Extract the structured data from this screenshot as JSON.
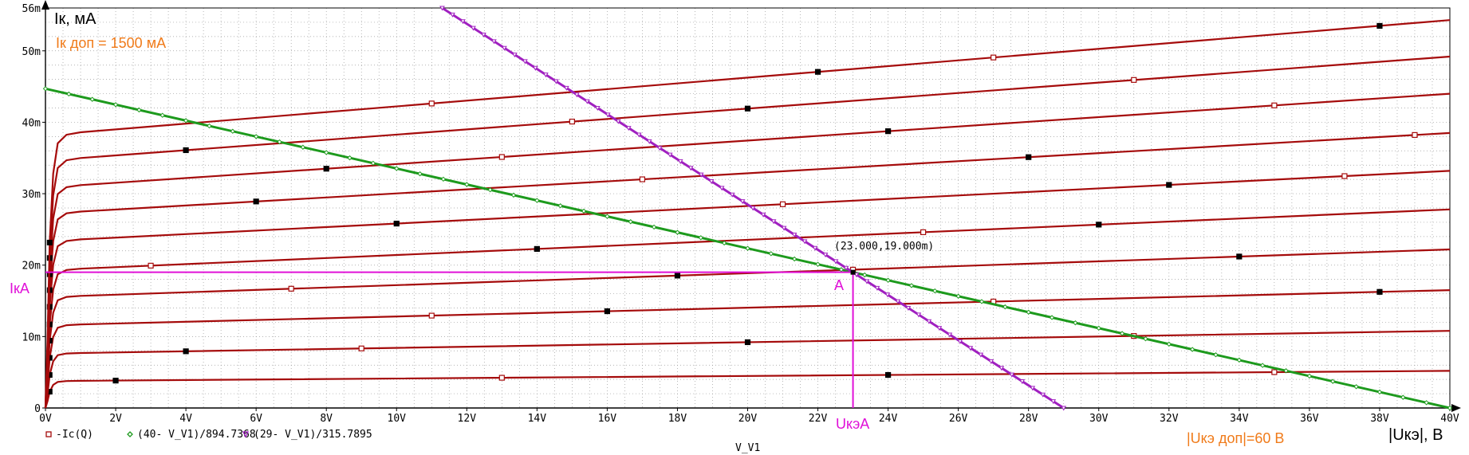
{
  "chart_data": {
    "type": "line",
    "x_axis_bottom_label": "V_V1",
    "x_label_custom": "|Uкэ|, В",
    "y_label_custom": "Iк, мА",
    "xlim": [
      0,
      40
    ],
    "ylim": [
      0,
      0.056
    ],
    "xticks": [
      {
        "v": 0,
        "label": "0V"
      },
      {
        "v": 2,
        "label": "2V"
      },
      {
        "v": 4,
        "label": "4V"
      },
      {
        "v": 6,
        "label": "6V"
      },
      {
        "v": 8,
        "label": "8V"
      },
      {
        "v": 10,
        "label": "10V"
      },
      {
        "v": 12,
        "label": "12V"
      },
      {
        "v": 14,
        "label": "14V"
      },
      {
        "v": 16,
        "label": "16V"
      },
      {
        "v": 18,
        "label": "18V"
      },
      {
        "v": 20,
        "label": "20V"
      },
      {
        "v": 22,
        "label": "22V"
      },
      {
        "v": 24,
        "label": "24V"
      },
      {
        "v": 26,
        "label": "26V"
      },
      {
        "v": 28,
        "label": "28V"
      },
      {
        "v": 30,
        "label": "30V"
      },
      {
        "v": 32,
        "label": "32V"
      },
      {
        "v": 34,
        "label": "34V"
      },
      {
        "v": 36,
        "label": "36V"
      },
      {
        "v": 38,
        "label": "38V"
      },
      {
        "v": 40,
        "label": "40V"
      }
    ],
    "yticks": [
      {
        "v": 0,
        "label": "0"
      },
      {
        "v": 0.01,
        "label": "10m"
      },
      {
        "v": 0.02,
        "label": "20m"
      },
      {
        "v": 0.03,
        "label": "30m"
      },
      {
        "v": 0.04,
        "label": "40m"
      },
      {
        "v": 0.05,
        "label": "50m"
      },
      {
        "v": 0.056,
        "label": "56m"
      }
    ],
    "series": [
      {
        "name": "-Ic(Q)",
        "color": "#a50b0b",
        "marker": "square",
        "curves": [
          {
            "at_1V": 0.0038,
            "at_40V": 0.0052
          },
          {
            "at_1V": 0.0077,
            "at_40V": 0.0108
          },
          {
            "at_1V": 0.0117,
            "at_40V": 0.0165
          },
          {
            "at_1V": 0.0157,
            "at_40V": 0.0222
          },
          {
            "at_1V": 0.0195,
            "at_40V": 0.0278
          },
          {
            "at_1V": 0.0236,
            "at_40V": 0.0332
          },
          {
            "at_1V": 0.0275,
            "at_40V": 0.0385
          },
          {
            "at_1V": 0.0312,
            "at_40V": 0.044
          },
          {
            "at_1V": 0.035,
            "at_40V": 0.0492
          },
          {
            "at_1V": 0.0386,
            "at_40V": 0.0543
          }
        ]
      },
      {
        "name": "(40- V_V1)/894.7368",
        "color": "#1d9a1d",
        "marker": "diamond",
        "x": [
          0,
          40
        ],
        "y": [
          0.0447,
          0
        ]
      },
      {
        "name": "(29- V_V1)/315.7895",
        "color": "#a020c0",
        "marker": "triangle",
        "x": [
          11.3,
          29
        ],
        "y": [
          0.056,
          0
        ]
      }
    ],
    "operating_point": {
      "x": 23.0,
      "y": 0.019,
      "label": "(23.000,19.000m)",
      "name": "A"
    },
    "projection_labels": {
      "ik": "IкA",
      "uk": "UкэA"
    },
    "annotations": {
      "ik_max": "Iк доп = 1500 мА",
      "uk_max": "|Uкэ доп|=60 В"
    },
    "grid": true,
    "legend_placement": "bottom-left"
  },
  "colors": {
    "family": "#a50b0b",
    "load_dc": "#1d9a1d",
    "load_ac": "#a020c0",
    "projection": "#e010d8",
    "annotation": "#f07b1a",
    "op_label": "#777777",
    "grid": "#9a9a9a"
  }
}
